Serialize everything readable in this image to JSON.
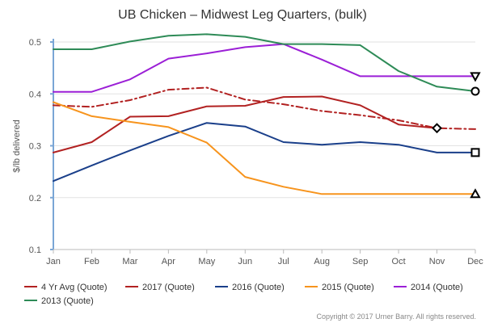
{
  "chart_data": {
    "type": "line",
    "title": "UB Chicken – Midwest Leg Quarters, (bulk)",
    "xlabel": "",
    "ylabel": "$/lb delivered",
    "categories": [
      "Jan",
      "Feb",
      "Mar",
      "Apr",
      "May",
      "Jun",
      "Jul",
      "Aug",
      "Sep",
      "Oct",
      "Nov",
      "Dec"
    ],
    "ylim": [
      0.1,
      0.5
    ],
    "yticks": [
      0.1,
      0.2,
      0.3,
      0.4,
      0.5
    ],
    "grid": true,
    "legend_position": "bottom",
    "series": [
      {
        "name": "4 Yr Avg (Quote)",
        "color": "#b22222",
        "dash": "dash-dot",
        "marker": "diamond",
        "marker_index": 10,
        "values": [
          0.378,
          0.375,
          0.388,
          0.408,
          0.412,
          0.389,
          0.38,
          0.367,
          0.359,
          0.349,
          0.334,
          0.332
        ]
      },
      {
        "name": "2017 (Quote)",
        "color": "#b22222",
        "dash": "solid",
        "marker": null,
        "values": [
          0.287,
          0.307,
          0.356,
          0.357,
          0.376,
          0.377,
          0.394,
          0.395,
          0.378,
          0.341,
          0.334,
          null
        ]
      },
      {
        "name": "2016 (Quote)",
        "color": "#1a3f8a",
        "dash": "solid",
        "marker": "square",
        "marker_index": 11,
        "values": [
          0.232,
          0.262,
          0.291,
          0.319,
          0.344,
          0.337,
          0.307,
          0.302,
          0.307,
          0.302,
          0.287,
          0.287
        ]
      },
      {
        "name": "2015 (Quote)",
        "color": "#f7941d",
        "dash": "solid",
        "marker": "triangle-up",
        "marker_index": 11,
        "values": [
          0.384,
          0.357,
          0.346,
          0.336,
          0.306,
          0.24,
          0.221,
          0.207,
          0.207,
          0.207,
          0.207,
          0.207
        ]
      },
      {
        "name": "2014 (Quote)",
        "color": "#9b1fd6",
        "dash": "solid",
        "marker": "triangle-down",
        "marker_index": 11,
        "values": [
          0.404,
          0.404,
          0.428,
          0.468,
          0.478,
          0.49,
          0.496,
          0.466,
          0.434,
          0.434,
          0.434,
          0.434
        ]
      },
      {
        "name": "2013 (Quote)",
        "color": "#2e8b57",
        "dash": "solid",
        "marker": "circle",
        "marker_index": 11,
        "values": [
          0.486,
          0.486,
          0.501,
          0.512,
          0.515,
          0.51,
          0.496,
          0.496,
          0.494,
          0.444,
          0.414,
          0.405
        ]
      }
    ],
    "credit": "Copyright © 2017 Urner Barry. All rights reserved."
  }
}
